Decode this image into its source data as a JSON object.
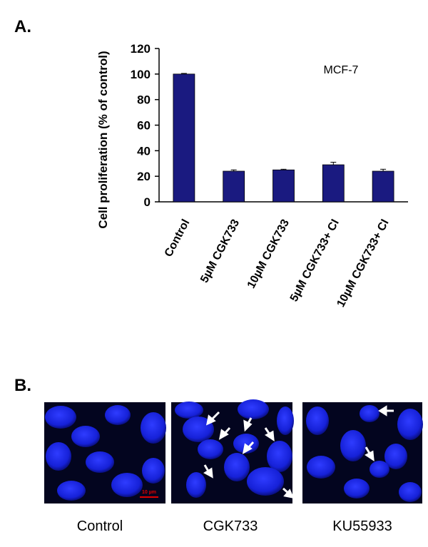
{
  "panel_a_label": "A.",
  "chart_data": {
    "type": "bar",
    "annotation": "MCF-7",
    "y_label": "Cell proliferation (% of control)",
    "categories": [
      "Control",
      "5µM CGK733",
      "10µM CGK733",
      "5µM CGK733+ CI",
      "10µM CGK733+ CI"
    ],
    "values": [
      100,
      24,
      25,
      29,
      24
    ],
    "errors": [
      0.5,
      1,
      0.5,
      2,
      1.5
    ],
    "color": "#1a1a80",
    "ylim": [
      0,
      120
    ],
    "yticks": [
      0,
      20,
      40,
      60,
      80,
      100,
      120
    ],
    "grid": false
  },
  "panel_b": {
    "label": "B.",
    "images": [
      {
        "label": "Control",
        "scale_bar": "10 µm"
      },
      {
        "label": "CGK733"
      },
      {
        "label": "KU55933"
      }
    ]
  }
}
